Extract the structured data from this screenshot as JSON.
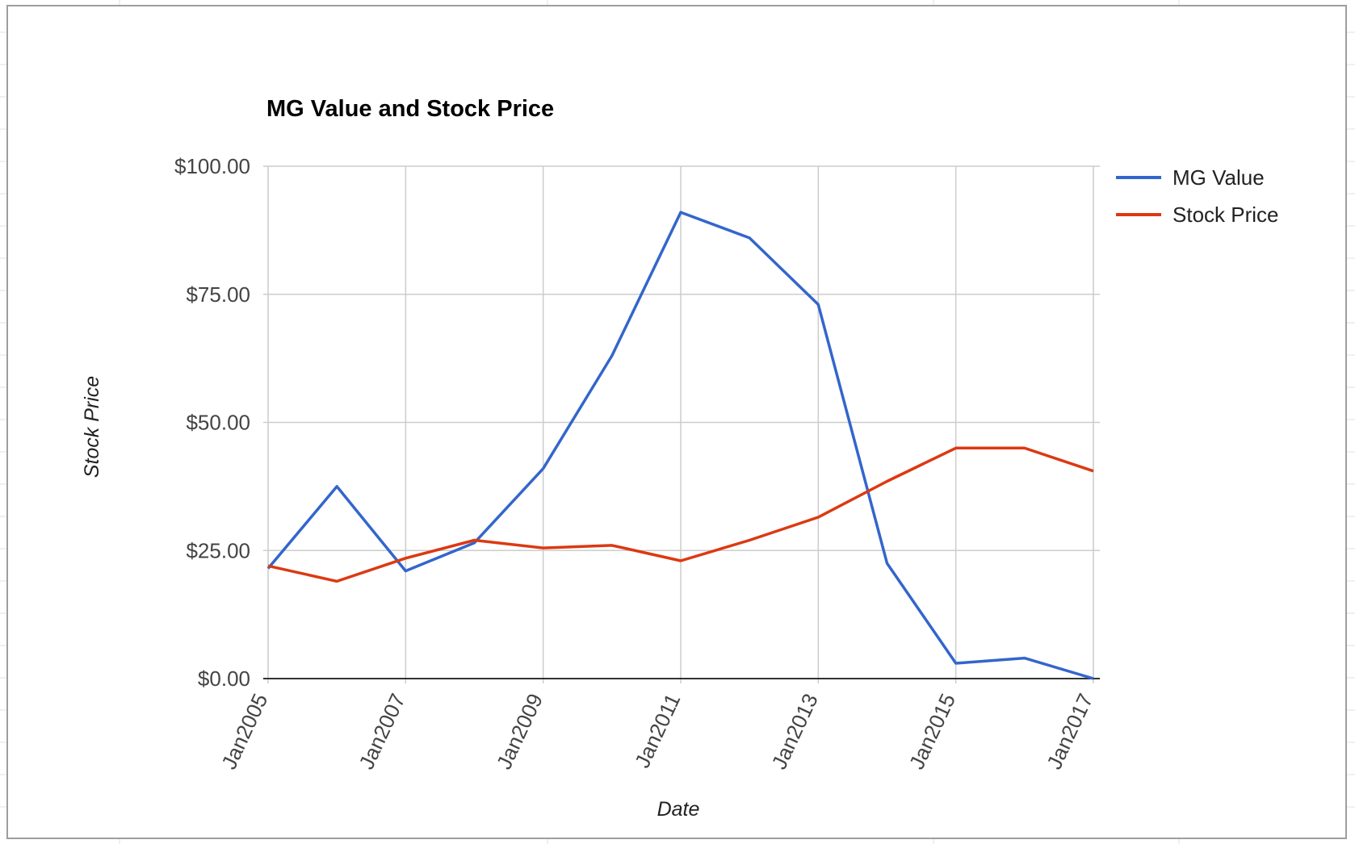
{
  "chart_data": {
    "type": "line",
    "title": "MG Value and Stock Price",
    "xlabel": "Date",
    "ylabel": "Stock Price",
    "x_tick_labels": [
      "Jan2005",
      "Jan2007",
      "Jan2009",
      "Jan2011",
      "Jan2013",
      "Jan2015",
      "Jan2017"
    ],
    "y_tick_labels": [
      "$0.00",
      "$25.00",
      "$50.00",
      "$75.00",
      "$100.00"
    ],
    "y_ticks": [
      0,
      25,
      50,
      75,
      100
    ],
    "ylim": [
      0,
      100
    ],
    "xlim": [
      "2005-01",
      "2017-01"
    ],
    "grid": true,
    "legend_position": "right",
    "x": [
      "2005-01",
      "2006-01",
      "2007-01",
      "2008-01",
      "2009-01",
      "2010-01",
      "2011-01",
      "2012-01",
      "2013-01",
      "2014-01",
      "2015-01",
      "2016-01",
      "2017-01"
    ],
    "series": [
      {
        "name": "MG Value",
        "color": "#3366cc",
        "values": [
          21.5,
          37.5,
          21.0,
          26.5,
          41.0,
          63.0,
          91.0,
          86.0,
          73.0,
          22.5,
          3.0,
          4.0,
          0.0
        ]
      },
      {
        "name": "Stock Price",
        "color": "#dc3912",
        "values": [
          22.0,
          19.0,
          23.5,
          27.0,
          25.5,
          26.0,
          23.0,
          27.0,
          31.5,
          38.5,
          45.0,
          45.0,
          40.5
        ]
      }
    ]
  }
}
